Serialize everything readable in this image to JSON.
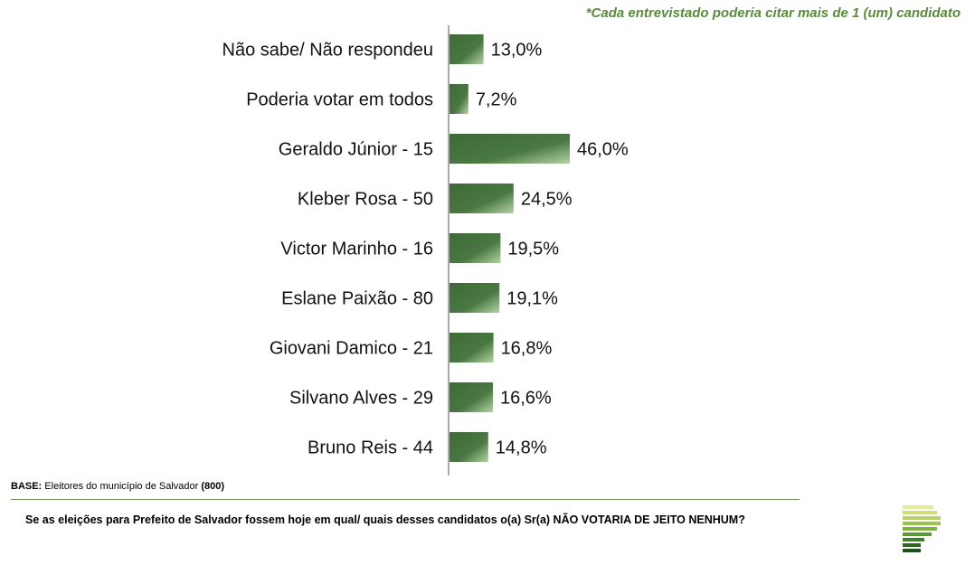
{
  "note": "*Cada entrevistado poderia citar mais de 1 (um) candidato",
  "base": {
    "label": "BASE:",
    "text": "Eleitores do município de Salvador",
    "count": "(800)"
  },
  "question": "Se as eleições para Prefeito de Salvador fossem hoje em qual/ quais desses candidatos o(a) Sr(a) NÃO VOTARIA DE JEITO NENHUM?",
  "logo_icon": "institute-stripes-logo",
  "colors": {
    "bar_dark": "#3d6a36",
    "bar_light": "#a9c99a",
    "note": "#5a8a3c"
  },
  "chart_data": {
    "type": "bar",
    "orientation": "horizontal",
    "categories": [
      "Não sabe/ Não respondeu",
      "Poderia votar em todos",
      "Geraldo Júnior - 15",
      "Kleber Rosa - 50",
      "Victor Marinho - 16",
      "Eslane Paixão - 80",
      "Giovani Damico - 21",
      "Silvano Alves - 29",
      "Bruno Reis - 44"
    ],
    "values": [
      13.0,
      7.2,
      46.0,
      24.5,
      19.5,
      19.1,
      16.8,
      16.6,
      14.8
    ],
    "value_labels": [
      "13,0%",
      "7,2%",
      "46,0%",
      "24,5%",
      "19,5%",
      "19,1%",
      "16,8%",
      "16,6%",
      "14,8%"
    ],
    "xlim": [
      0,
      100
    ],
    "grid": false,
    "legend": "none"
  }
}
